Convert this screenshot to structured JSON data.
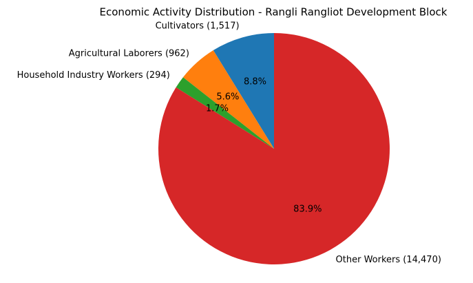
{
  "chart_data": {
    "type": "pie",
    "title": "Economic Activity Distribution - Rangli Rangliot Development Block",
    "categories": [
      "Cultivators (1,517)",
      "Agricultural Laborers (962)",
      "Household Industry Workers (294)",
      "Other Workers (14,470)"
    ],
    "values": [
      8.8,
      5.6,
      1.7,
      83.9
    ],
    "value_labels": [
      "8.8%",
      "5.6%",
      "1.7%",
      "83.9%"
    ],
    "colors": [
      "#1f77b4",
      "#ff7f0e",
      "#2ca02c",
      "#d62728"
    ]
  }
}
